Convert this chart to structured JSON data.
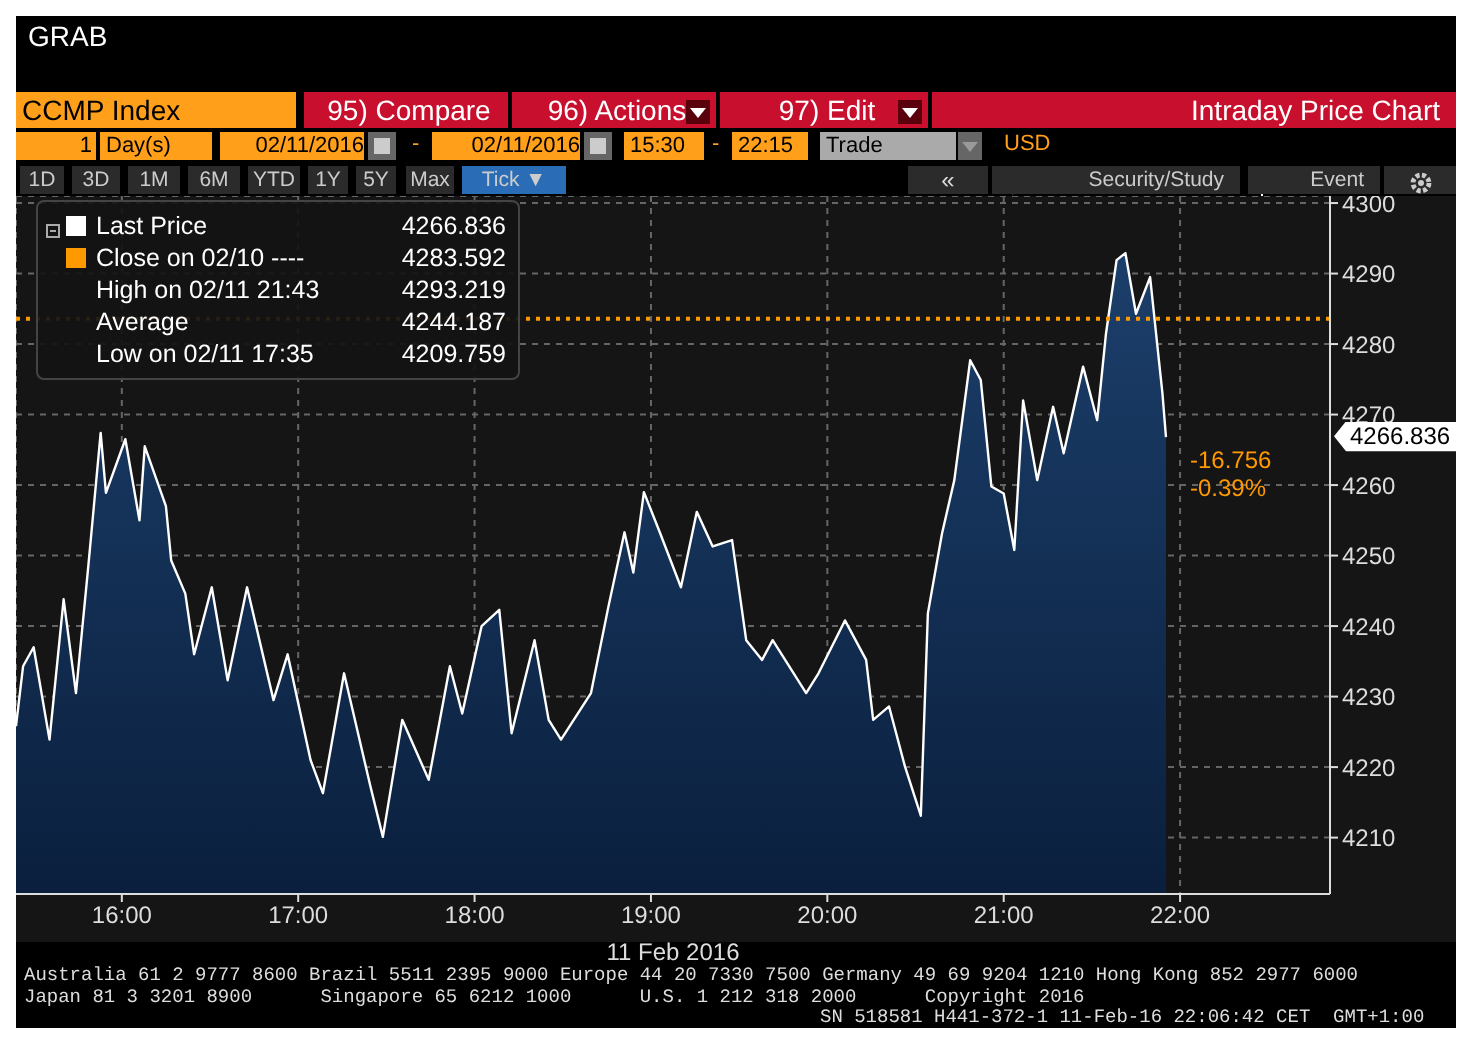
{
  "chart_data": {
    "type": "area",
    "title": "CCMP Index",
    "subtitle": "Intraday Price Chart",
    "xlabel": "11 Feb 2016",
    "x": [
      15.4,
      15.44,
      15.5,
      15.59,
      15.67,
      15.74,
      15.81,
      15.88,
      15.91,
      16.02,
      16.1,
      16.13,
      16.25,
      16.28,
      16.36,
      16.41,
      16.51,
      16.6,
      16.71,
      16.86,
      16.94,
      17.07,
      17.14,
      17.26,
      17.41,
      17.48,
      17.59,
      17.74,
      17.86,
      17.93,
      18.04,
      18.14,
      18.21,
      18.34,
      18.42,
      18.49,
      18.66,
      18.76,
      18.85,
      18.9,
      18.96,
      19.05,
      19.17,
      19.26,
      19.35,
      19.46,
      19.54,
      19.63,
      19.69,
      19.88,
      19.95,
      20.1,
      20.22,
      20.26,
      20.35,
      20.44,
      20.53,
      20.57,
      20.65,
      20.72,
      20.81,
      20.87,
      20.93,
      21.0,
      21.06,
      21.11,
      21.19,
      21.28,
      21.34,
      21.45,
      21.53,
      21.58,
      21.64,
      21.69,
      21.75,
      21.83,
      21.88,
      21.9,
      21.92
    ],
    "series": [
      {
        "name": "Last Price",
        "color": "#ffffff",
        "values": [
          4225.8,
          4234.3,
          4237.0,
          4223.9,
          4243.8,
          4230.5,
          4248.5,
          4267.4,
          4258.9,
          4266.5,
          4255.0,
          4265.5,
          4257.0,
          4249.3,
          4244.6,
          4236.0,
          4245.5,
          4232.3,
          4245.5,
          4229.5,
          4236.0,
          4221.0,
          4216.3,
          4233.3,
          4217.2,
          4210.1,
          4226.7,
          4218.2,
          4234.3,
          4227.6,
          4240.0,
          4242.3,
          4224.8,
          4238.0,
          4226.7,
          4223.9,
          4230.5,
          4242.9,
          4253.3,
          4247.6,
          4259.0,
          4253.3,
          4245.5,
          4256.2,
          4251.3,
          4252.2,
          4238.0,
          4235.2,
          4238.0,
          4230.5,
          4233.3,
          4240.8,
          4235.2,
          4226.7,
          4228.6,
          4220.1,
          4213.1,
          4241.8,
          4253.1,
          4260.7,
          4277.7,
          4274.9,
          4259.8,
          4258.8,
          4250.8,
          4272.0,
          4260.7,
          4271.1,
          4264.5,
          4276.8,
          4269.2,
          4281.5,
          4291.9,
          4292.9,
          4284.3,
          4289.5,
          4277.7,
          4273.0,
          4266.8
        ]
      }
    ],
    "xlim": [
      15.4,
      22.85
    ],
    "xticks": [
      {
        "value": 16,
        "label": "16:00"
      },
      {
        "value": 17,
        "label": "17:00"
      },
      {
        "value": 18,
        "label": "18:00"
      },
      {
        "value": 19,
        "label": "19:00"
      },
      {
        "value": 20,
        "label": "20:00"
      },
      {
        "value": 21,
        "label": "21:00"
      },
      {
        "value": 22,
        "label": "22:00"
      }
    ],
    "ylim": [
      4202,
      4301
    ],
    "yticks": [
      4210,
      4220,
      4230,
      4240,
      4250,
      4260,
      4270,
      4280,
      4290,
      4300
    ],
    "grid": true,
    "legend": "top left",
    "marker": "none",
    "line_style": "solid",
    "ref_lines": [
      {
        "axis": "y",
        "value": 4283.592,
        "label": "Close on 02/10 ----",
        "color": "#ff9900",
        "line_style": "dotted"
      }
    ],
    "annotations": [
      "GRAB",
      "95) Compare",
      "96) Actions",
      "97) Edit",
      "1",
      "Day(s)",
      "02/11/2016",
      "-",
      "02/11/2016",
      "15:30",
      "-",
      "22:15",
      "Trade",
      "USD",
      "1D",
      "3D",
      "1M",
      "6M",
      "YTD",
      "1Y",
      "5Y",
      "Max",
      "Tick ▼",
      "«",
      "Security/Study",
      "Event",
      "4266.836",
      "High on 02/11 21:43",
      "4293.219",
      "Average",
      "4244.187",
      "Low on 02/11 17:35",
      "4209.759",
      "4266.836",
      "-16.756",
      "-0.39%",
      "Australia 61 2 9777 8600 Brazil 5511 2395 9000 Europe 44 20 7330 7500 Germany 49 69 9204 1210 Hong Kong 852 2977 6000",
      "Japan 81 3 3201 8900      Singapore 65 6212 1000      U.S. 1 212 318 2000      Copyright 2016",
      "SN 518581 H441-372-1 11-Feb-16 22:06:42 CET  GMT+1:00",
      "4283.592"
    ]
  }
}
